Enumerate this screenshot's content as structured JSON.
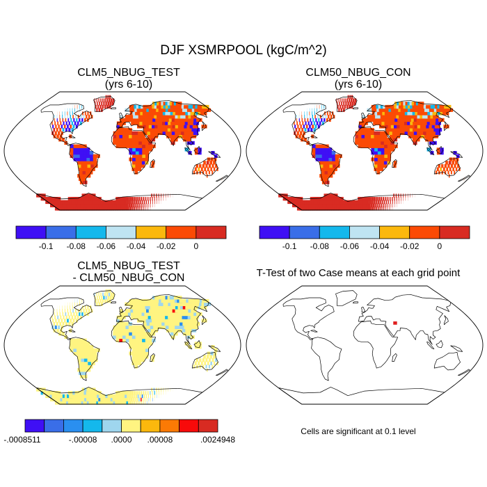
{
  "figure": {
    "title": "DJF XSMRPOOL (kgC/m^2)"
  },
  "chart_data": [
    {
      "type": "heatmap",
      "title": "CLM5_NBUG_TEST",
      "subtitle": "(yrs 6-10)",
      "colorbar": {
        "colors": [
          "#3f0ff5",
          "#3a6ee8",
          "#14b8ec",
          "#bfe4f2",
          "#fbb80d",
          "#fb4a05",
          "#d82b22"
        ],
        "tick_labels": [
          "-0.1",
          "-0.08",
          "-0.06",
          "-0.04",
          "-0.02",
          "0"
        ]
      }
    },
    {
      "type": "heatmap",
      "title": "CLM50_NBUG_CON",
      "subtitle": "(yrs 6-10)",
      "colorbar": {
        "colors": [
          "#3f0ff5",
          "#3a6ee8",
          "#14b8ec",
          "#bfe4f2",
          "#fbb80d",
          "#fb4a05",
          "#d82b22"
        ],
        "tick_labels": [
          "-0.1",
          "-0.08",
          "-0.06",
          "-0.04",
          "-0.02",
          "0"
        ]
      }
    },
    {
      "type": "heatmap",
      "title": "CLM5_NBUG_TEST",
      "subtitle": "- CLM50_NBUG_CON",
      "colorbar": {
        "colors": [
          "#3f0ff5",
          "#3a6ee8",
          "#2a8ff0",
          "#14b8ec",
          "#9fd6ee",
          "#fff481",
          "#fbb80d",
          "#fb7a05",
          "#f80a0a",
          "#d82b22"
        ],
        "tick_labels": [
          "-.0008511",
          "-.00008",
          ".0000",
          ".00008",
          ".0024948"
        ]
      }
    },
    {
      "type": "heatmap",
      "title": "T-Test of two Case means at each grid point",
      "note": "Cells are significant at 0.1 level"
    }
  ]
}
